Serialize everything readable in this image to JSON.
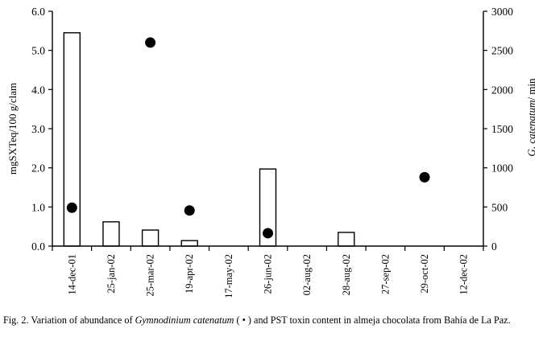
{
  "chart_data": {
    "type": "bar",
    "categories": [
      "14-dec-01",
      "25-jan-02",
      "25-mar-02",
      "19-apr-02",
      "17-may-02",
      "26-jun-02",
      "02-aug-02",
      "28-aug-02",
      "27-sep-02",
      "29-oct-02",
      "12-dec-02"
    ],
    "bar_series": {
      "axis": "left",
      "values": [
        5.45,
        0.62,
        0.41,
        0.14,
        0,
        1.97,
        0,
        0.35,
        0,
        0,
        0
      ]
    },
    "point_series": {
      "axis": "right",
      "values": [
        490,
        null,
        2600,
        455,
        null,
        165,
        null,
        null,
        null,
        880,
        null
      ]
    },
    "ylabel": "mgSXTeq/100 g/clam",
    "y2label_italic": "G. catenatum",
    "y2label_rest": "/ min",
    "ylim": [
      0,
      6
    ],
    "y2lim": [
      0,
      3000
    ],
    "yticks": [
      "0.0",
      "1.0",
      "2.0",
      "3.0",
      "4.0",
      "5.0",
      "6.0"
    ],
    "y2ticks": [
      "0",
      "500",
      "1000",
      "1500",
      "2000",
      "2500",
      "3000"
    ],
    "grid": false
  },
  "caption": {
    "prefix": "Fig. 2. Variation of abundance of ",
    "species": "Gymnodinium catenatum",
    "symbol": " ( • ) ",
    "rest": "and PST toxin content in almeja chocolata from Bahía de La Paz."
  }
}
